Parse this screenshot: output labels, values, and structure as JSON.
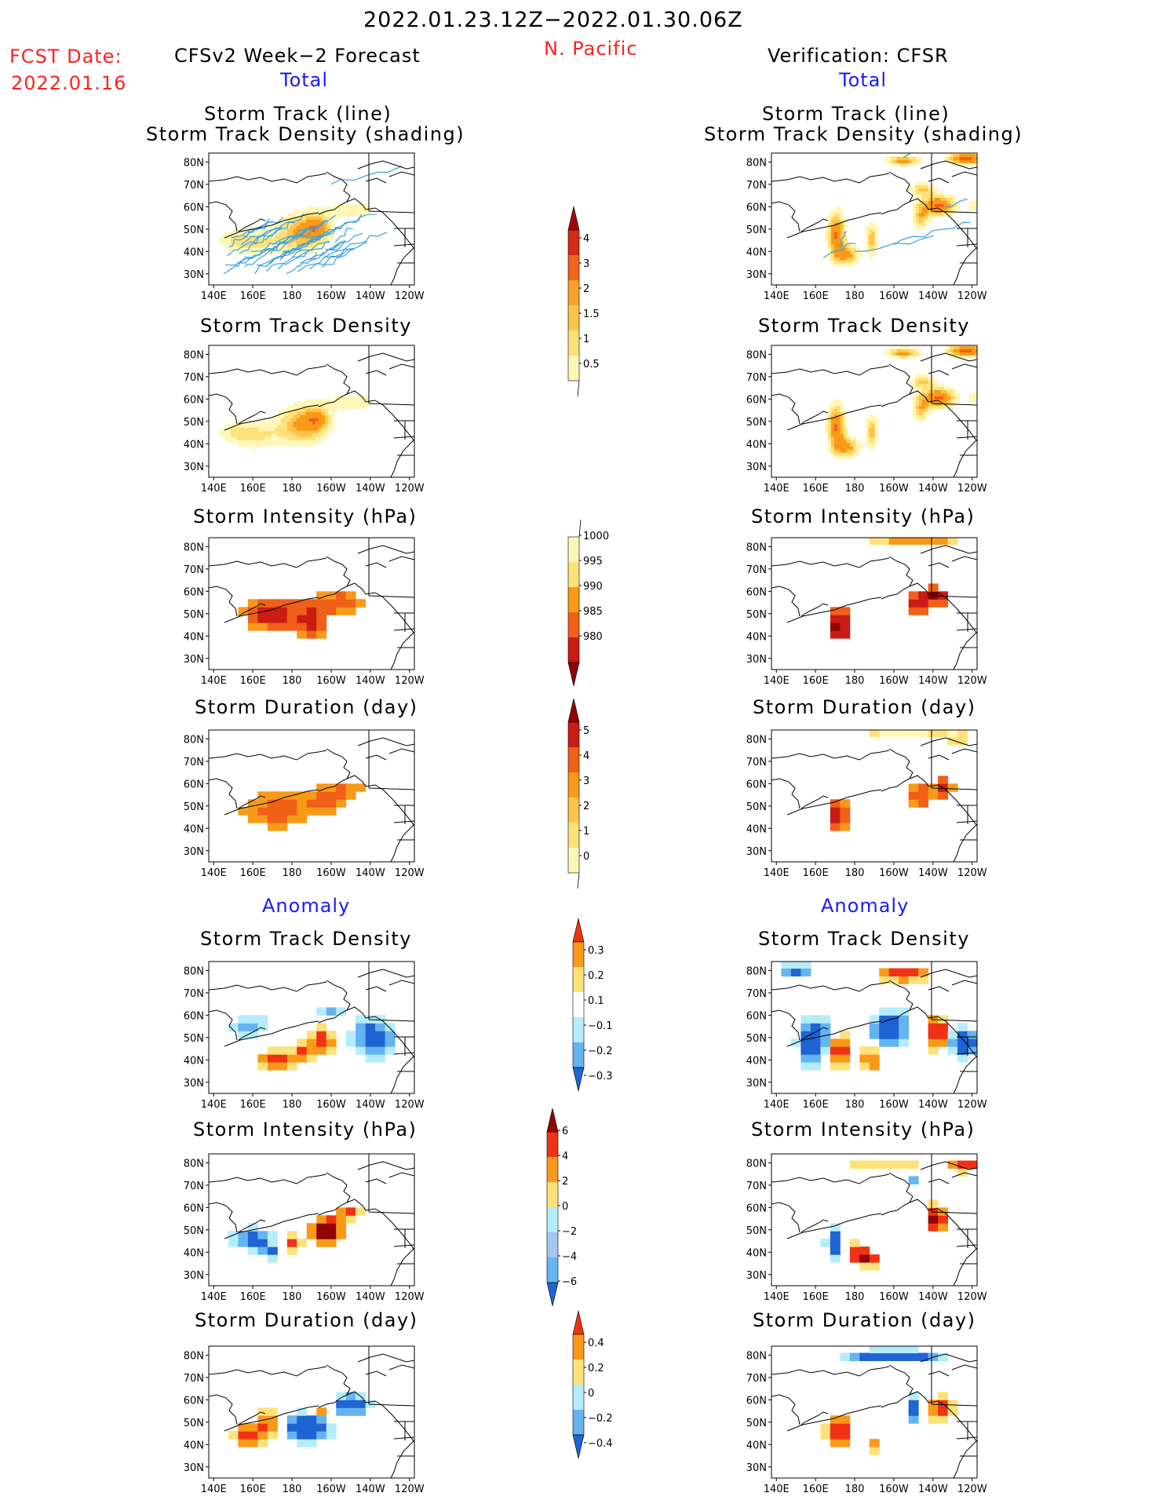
{
  "header": {
    "period": "2022.01.23.12Z−2022.01.30.06Z",
    "region": "N. Pacific",
    "fcst_label": "FCST Date:",
    "fcst_date": "2022.01.16",
    "left_title": "CFSv2 Week−2 Forecast",
    "right_title": "Verification: CFSR",
    "total_label": "Total",
    "anomaly_label": "Anomaly"
  },
  "panel_titles": {
    "track_line": "Storm Track (line)",
    "track_density_shading": "Storm Track Density (shading)",
    "track_density": "Storm Track Density",
    "intensity": "Storm Intensity (hPa)",
    "duration": "Storm Duration (day)"
  },
  "axes": {
    "lon_ticks": [
      "140E",
      "160E",
      "180",
      "160W",
      "140W",
      "120W"
    ],
    "lat_ticks": [
      "80N",
      "70N",
      "60N",
      "50N",
      "40N",
      "30N"
    ]
  },
  "colors": {
    "track_line": "#3aa0e0",
    "coast": "#000000"
  },
  "chart_data": [
    {
      "type": "heatmap",
      "title": "Storm Track Density (total)",
      "colorbar": {
        "ticks": [
          "0.5",
          "1",
          "1.5",
          "2",
          "3",
          "4"
        ],
        "colors": [
          "#fff7b8",
          "#fde27a",
          "#fbc54c",
          "#f8a12c",
          "#f0661e",
          "#d02c14",
          "#a00808"
        ]
      }
    },
    {
      "type": "heatmap",
      "title": "Storm Intensity (hPa) (total)",
      "colorbar": {
        "ticks": [
          "1000",
          "995",
          "990",
          "985",
          "980"
        ],
        "colors": [
          "#fff7b8",
          "#fde27a",
          "#f89a18",
          "#f06018",
          "#c81c14",
          "#900404"
        ]
      }
    },
    {
      "type": "heatmap",
      "title": "Storm Duration (day) (total)",
      "colorbar": {
        "ticks": [
          "0",
          "1",
          "2",
          "3",
          "4",
          "5"
        ],
        "colors": [
          "#fff7b8",
          "#fde27a",
          "#fbc54c",
          "#f89a18",
          "#f06018",
          "#c81c14",
          "#900404"
        ]
      }
    },
    {
      "type": "heatmap",
      "title": "Storm Track Density (anomaly)",
      "colorbar": {
        "ticks": [
          "0.3",
          "0.2",
          "0.1",
          "−0.1",
          "−0.2",
          "−0.3"
        ],
        "colors": [
          "#f03214",
          "#f89a18",
          "#fde27a",
          "#ffffff",
          "#b4ecfa",
          "#64b4f0",
          "#1e64d2"
        ]
      }
    },
    {
      "type": "heatmap",
      "title": "Storm Intensity (hPa) (anomaly)",
      "colorbar": {
        "ticks": [
          "6",
          "4",
          "2",
          "0",
          "−2",
          "−4",
          "−6"
        ],
        "colors": [
          "#900404",
          "#f03214",
          "#f89a18",
          "#fde27a",
          "#b4ecfa",
          "#a0c8f0",
          "#64b4f0",
          "#1e64d2"
        ]
      }
    },
    {
      "type": "heatmap",
      "title": "Storm Duration (day) (anomaly)",
      "colorbar": {
        "ticks": [
          "0.4",
          "0.2",
          "0",
          "−0.2",
          "−0.4"
        ],
        "colors": [
          "#f03214",
          "#f89a18",
          "#fde27a",
          "#b4ecfa",
          "#64b4f0",
          "#1e64d2"
        ]
      }
    }
  ]
}
